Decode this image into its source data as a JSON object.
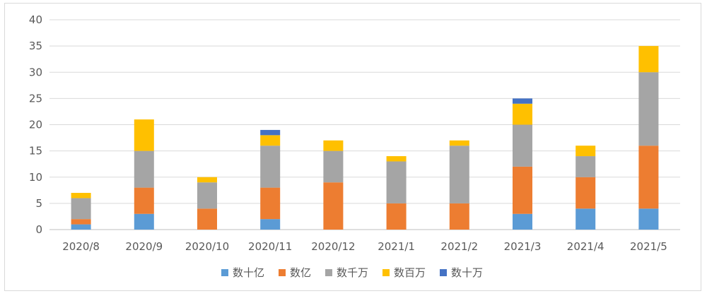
{
  "chart_data": {
    "type": "bar",
    "stacked": true,
    "categories": [
      "2020/8",
      "2020/9",
      "2020/10",
      "2020/11",
      "2020/12",
      "2021/1",
      "2021/2",
      "2021/3",
      "2021/4",
      "2021/5"
    ],
    "series": [
      {
        "name": "数十亿",
        "color": "#5b9bd5",
        "values": [
          1,
          3,
          0,
          2,
          0,
          0,
          0,
          3,
          4,
          4
        ]
      },
      {
        "name": "数亿",
        "color": "#ed7d31",
        "values": [
          1,
          5,
          4,
          6,
          9,
          5,
          5,
          9,
          6,
          12
        ]
      },
      {
        "name": "数千万",
        "color": "#a5a5a5",
        "values": [
          4,
          7,
          5,
          8,
          6,
          8,
          11,
          8,
          4,
          14
        ]
      },
      {
        "name": "数百万",
        "color": "#ffc000",
        "values": [
          1,
          6,
          1,
          2,
          2,
          1,
          1,
          4,
          2,
          5
        ]
      },
      {
        "name": "数十万",
        "color": "#4472c4",
        "values": [
          0,
          0,
          0,
          1,
          0,
          0,
          0,
          1,
          0,
          0
        ]
      }
    ],
    "ylim": [
      0,
      40
    ],
    "yticks": [
      0,
      5,
      10,
      15,
      20,
      25,
      30,
      35,
      40
    ],
    "ytick_labels": [
      "0",
      "5",
      "10",
      "15",
      "20",
      "25",
      "30",
      "35",
      "40"
    ],
    "grid": true,
    "legend_position": "bottom",
    "title": "",
    "xlabel": "",
    "ylabel": ""
  }
}
